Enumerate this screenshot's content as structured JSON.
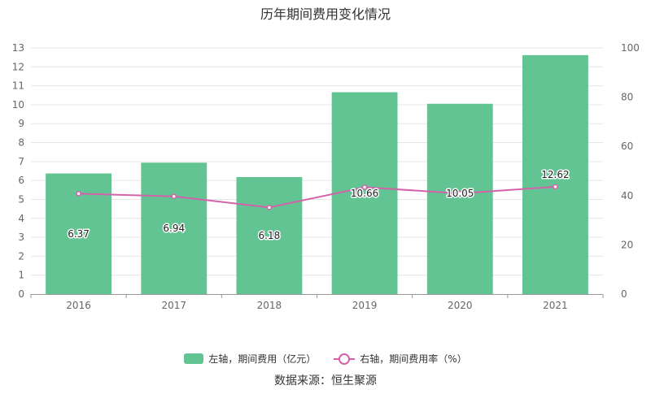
{
  "title": "历年期间费用变化情况",
  "source_text": "数据来源：恒生聚源",
  "colors": {
    "bar": "#62c492",
    "line": "#d462ab",
    "grid": "#e6e6e6",
    "axis": "#999999"
  },
  "legend": [
    {
      "label": "左轴，期间费用（亿元）",
      "kind": "bar"
    },
    {
      "label": "右轴，期间费用率（%）",
      "kind": "line"
    }
  ],
  "chart_data": {
    "type": "bar",
    "categories": [
      "2016",
      "2017",
      "2018",
      "2019",
      "2020",
      "2021"
    ],
    "series": [
      {
        "name": "左轴，期间费用（亿元）",
        "type": "bar",
        "axis": "left",
        "values": [
          6.37,
          6.94,
          6.18,
          10.66,
          10.05,
          12.62
        ],
        "data_labels": [
          "6.37",
          "6.94",
          "6.18",
          "10.66",
          "10.05",
          "12.62"
        ]
      },
      {
        "name": "右轴，期间费用率（%）",
        "type": "line",
        "axis": "right",
        "values": [
          40.8,
          39.7,
          35.2,
          43.4,
          40.9,
          43.6
        ]
      }
    ],
    "y_left": {
      "min": 0,
      "max": 13,
      "ticks": [
        "0",
        "1",
        "2",
        "3",
        "4",
        "5",
        "6",
        "7",
        "8",
        "9",
        "10",
        "11",
        "12",
        "13"
      ]
    },
    "y_right": {
      "min": 0,
      "max": 100,
      "ticks": [
        "0",
        "20",
        "40",
        "60",
        "80",
        "100"
      ]
    },
    "grid": true,
    "legend_position": "bottom"
  }
}
